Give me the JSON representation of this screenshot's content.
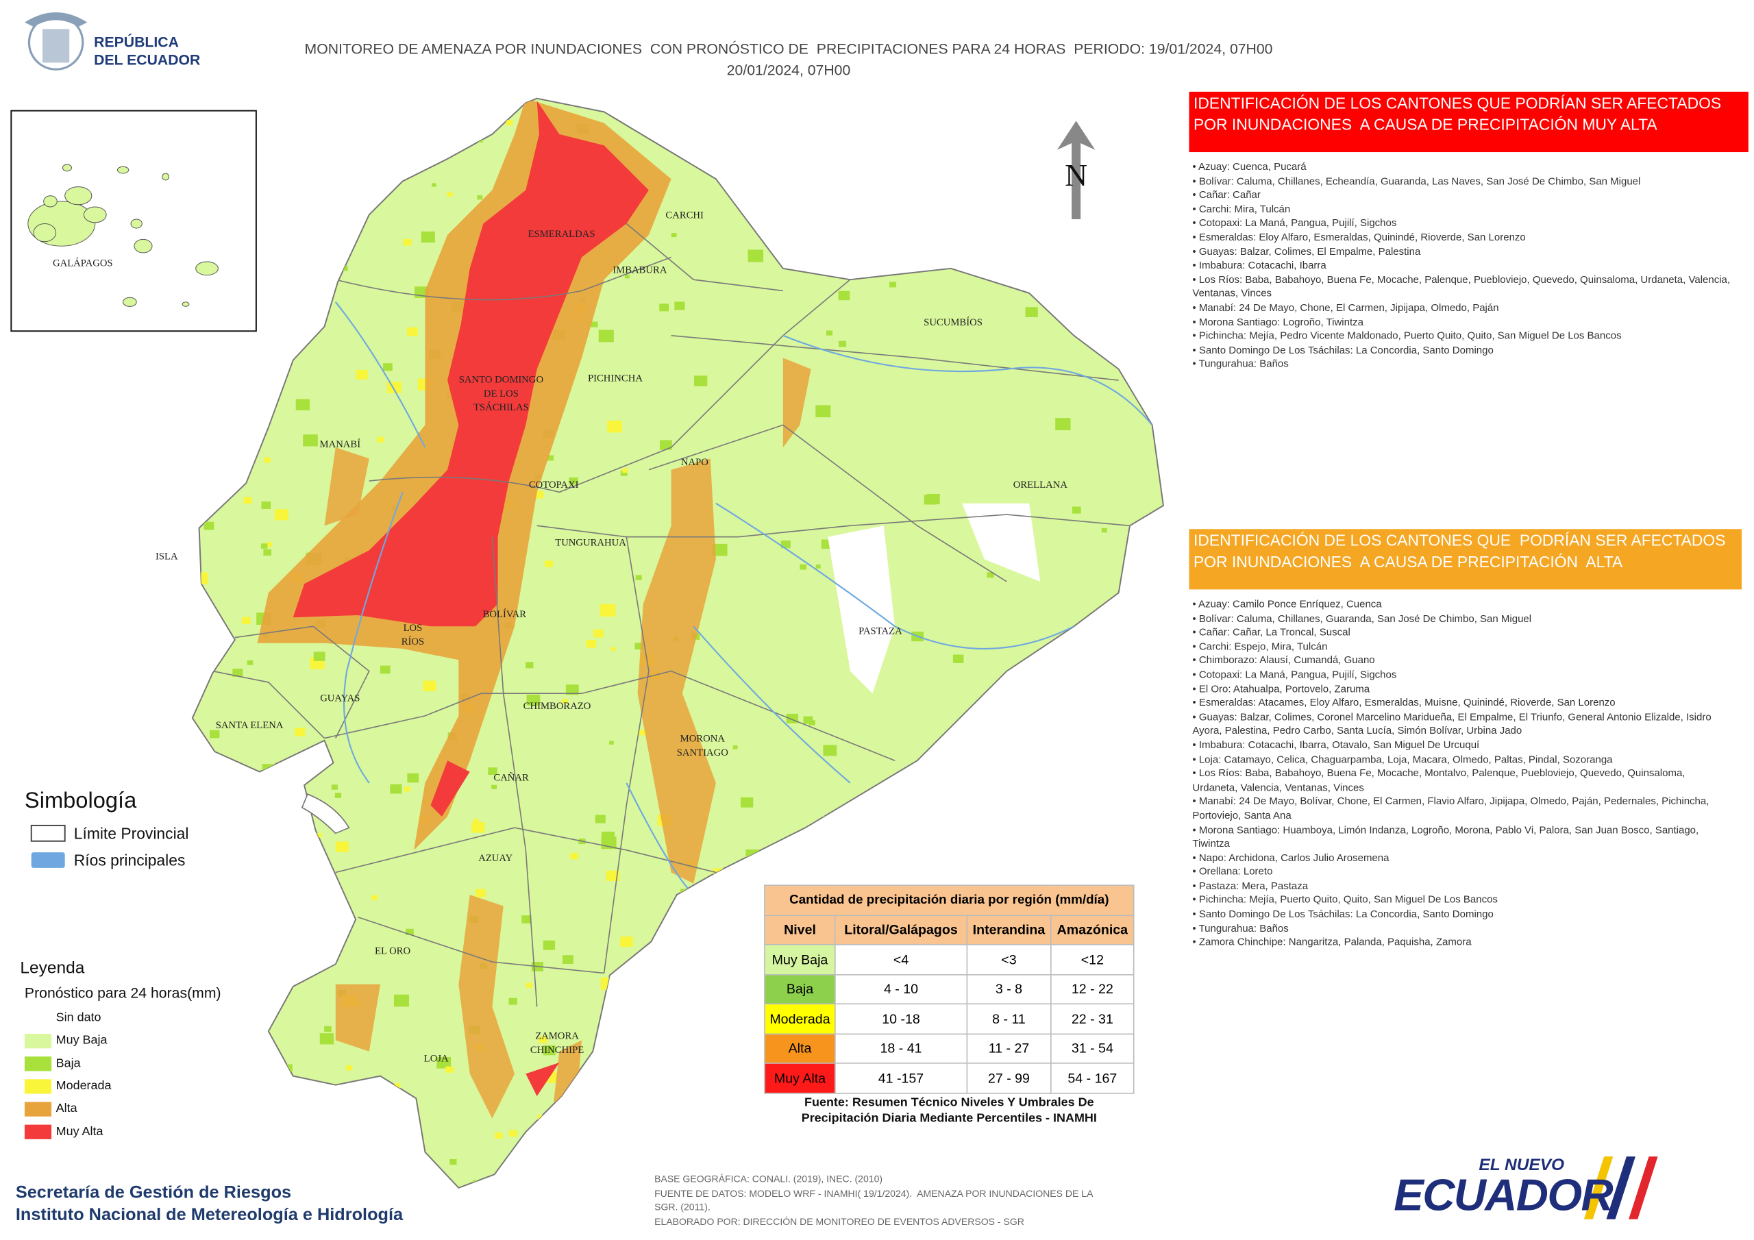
{
  "header": {
    "logo": [
      "REPÚBLICA",
      "DEL ECUADOR"
    ],
    "title": [
      "MONITOREO DE AMENAZA POR INUNDACIONES  CON PRONÓSTICO DE  PRECIPITACIONES PARA 24 HORAS  PERIODO: 19/01/2024, 07H00",
      "20/01/2024, 07H00"
    ]
  },
  "inset": {
    "label": "GALÁPAGOS"
  },
  "north": "N",
  "map_labels": [
    [
      "ESMERALDAS"
    ],
    [
      "CARCHI"
    ],
    [
      "IMBABURA"
    ],
    [
      "SUCUMBÍOS"
    ],
    [
      "PICHINCHA"
    ],
    [
      "SANTO DOMINGO",
      "DE LOS",
      "TSÁCHILAS"
    ],
    [
      "MANABÍ"
    ],
    [
      "NAPO"
    ],
    [
      "ORELLANA"
    ],
    [
      "COTOPAXI"
    ],
    [
      "TUNGURAHUA"
    ],
    [
      "ISLA"
    ],
    [
      "PASTAZA"
    ],
    [
      "BOLÍVAR"
    ],
    [
      "LOS",
      "RÍOS"
    ],
    [
      "GUAYAS"
    ],
    [
      "CHIMBORAZO"
    ],
    [
      "SANTA ELENA"
    ],
    [
      "MORONA",
      "SANTIAGO"
    ],
    [
      "CAÑAR"
    ],
    [
      "AZUAY"
    ],
    [
      "EL ORO"
    ],
    [
      "ZAMORA",
      "CHINCHIPE"
    ],
    [
      "LOJA"
    ]
  ],
  "symbology": {
    "title": "Simbología",
    "items": [
      "Límite Provincial",
      "Ríos principales"
    ]
  },
  "legend": {
    "title": "Leyenda",
    "subtitle": "Pronóstico para 24 horas(mm)",
    "items": [
      {
        "label": "Sin dato",
        "color": "#ffffff"
      },
      {
        "label": "Muy Baja",
        "color": "#d9f79c"
      },
      {
        "label": "Baja",
        "color": "#a8e03c"
      },
      {
        "label": "Moderada",
        "color": "#f8f53a"
      },
      {
        "label": "Alta",
        "color": "#e8a43c"
      },
      {
        "label": "Muy Alta",
        "color": "#f33b3b"
      }
    ]
  },
  "table": {
    "title": "Cantidad de precipitación diaria por región (mm/día)",
    "headers": [
      "Nivel",
      "Litoral/Galápagos",
      "Interandina",
      "Amazónica"
    ],
    "rows": [
      [
        "Muy Baja",
        "<4",
        "<3",
        "<12"
      ],
      [
        "Baja",
        "4 - 10",
        "3 - 8",
        "12 - 22"
      ],
      [
        "Moderada",
        "10 -18",
        "8 - 11",
        "22 - 31"
      ],
      [
        "Alta",
        "18 - 41",
        "11 - 27",
        "31 - 54"
      ],
      [
        "Muy Alta",
        "41 -157",
        "27 - 99",
        "54 - 167"
      ]
    ],
    "row_colors": [
      "#d6f5a0",
      "#8cd04c",
      "#ffff00",
      "#f7941d",
      "#ff1a1a"
    ],
    "source": [
      "Fuente: Resumen Técnico Niveles Y Umbrales De",
      "Precipitación Diaria Mediante Percentiles - INAMHI"
    ]
  },
  "panels": [
    {
      "title": [
        "IDENTIFICACIÓN DE LOS CANTONES QUE PODRÍAN SER AFECTADOS",
        "POR INUNDACIONES  A CAUSA DE PRECIPITACIÓN MUY ALTA"
      ],
      "color": "#ff0000",
      "items": [
        "Azuay: Cuenca, Pucará",
        "Bolívar: Caluma, Chillanes, Echeandía, Guaranda, Las Naves, San José De Chimbo, San Miguel",
        "Cañar: Cañar",
        "Carchi: Mira, Tulcán",
        "Cotopaxi: La Maná, Pangua, Pujilí, Sigchos",
        "Esmeraldas: Eloy Alfaro, Esmeraldas, Quinindé, Rioverde, San Lorenzo",
        "Guayas: Balzar, Colimes, El Empalme, Palestina",
        "Imbabura: Cotacachi, Ibarra",
        "Los Ríos: Baba, Babahoyo, Buena Fe, Mocache, Palenque, Puebloviejo, Quevedo, Quinsaloma, Urdaneta, Valencia, Ventanas, Vinces",
        "Manabí: 24 De Mayo, Chone, El Carmen, Jipijapa, Olmedo, Paján",
        "Morona Santiago: Logroño, Tiwintza",
        "Pichincha: Mejía, Pedro Vicente Maldonado, Puerto Quito, Quito, San Miguel De Los Bancos",
        "Santo Domingo De Los Tsáchilas: La Concordia, Santo Domingo",
        "Tungurahua: Baños"
      ]
    },
    {
      "title": [
        "IDENTIFICACIÓN DE LOS CANTONES QUE  PODRÍAN SER AFECTADOS",
        "POR INUNDACIONES  A CAUSA DE PRECIPITACIÓN  ALTA"
      ],
      "color": "#f5a623",
      "items": [
        "Azuay: Camilo Ponce Enríquez, Cuenca",
        "Bolívar: Caluma, Chillanes, Guaranda, San José De Chimbo, San Miguel",
        "Cañar: Cañar, La Troncal, Suscal",
        "Carchi: Espejo, Mira, Tulcán",
        "Chimborazo: Alausí, Cumandá, Guano",
        "Cotopaxi: La Maná, Pangua, Pujilí, Sigchos",
        "El Oro: Atahualpa, Portovelo, Zaruma",
        "Esmeraldas: Atacames, Eloy Alfaro, Esmeraldas, Muisne, Quinindé, Rioverde, San Lorenzo",
        "Guayas: Balzar, Colimes, Coronel Marcelino Maridueña, El Empalme, El Triunfo, General Antonio Elizalde, Isidro Ayora, Palestina, Pedro Carbo, Santa Lucía, Simón Bolívar, Urbina Jado",
        "Imbabura: Cotacachi, Ibarra, Otavalo, San Miguel De Urcuquí",
        "Loja: Catamayo, Celica, Chaguarpamba, Loja, Macara, Olmedo, Paltas, Pindal, Sozoranga",
        "Los Ríos: Baba, Babahoyo, Buena Fe, Mocache, Montalvo, Palenque, Puebloviejo, Quevedo, Quinsaloma, Urdaneta, Valencia, Ventanas, Vinces",
        "Manabí: 24 De Mayo, Bolívar, Chone, El Carmen, Flavio Alfaro, Jipijapa, Olmedo, Paján, Pedernales, Pichincha, Portoviejo, Santa Ana",
        "Morona Santiago: Huamboya, Limón Indanza, Logroño, Morona, Pablo Vi, Palora, San Juan Bosco, Santiago, Tiwintza",
        "Napo: Archidona, Carlos Julio Arosemena",
        "Orellana: Loreto",
        "Pastaza: Mera, Pastaza",
        "Pichincha: Mejía, Puerto Quito, Quito, San Miguel De Los Bancos",
        "Santo Domingo De Los Tsáchilas: La Concordia, Santo Domingo",
        "Tungurahua: Baños",
        "Zamora Chinchipe: Nangaritza, Palanda, Paquisha, Zamora"
      ]
    }
  ],
  "footer": {
    "org": [
      "Secretaría de Gestión de Riesgos",
      "Instituto Nacional de Metereología e Hidrología"
    ],
    "credits": [
      "BASE GEOGRÁFICA: CONALI. (2019), INEC. (2010)",
      "FUENTE DE DATOS: MODELO WRF - INAMHI( 19/1/2024).  AMENAZA POR INUNDACIONES DE LA",
      "SGR. (2011).",
      "ELABORADO POR: DIRECCIÓN DE MONITOREO DE EVENTOS ADVERSOS - SGR"
    ],
    "brand": [
      "EL NUEVO",
      "ECUADOR"
    ]
  }
}
